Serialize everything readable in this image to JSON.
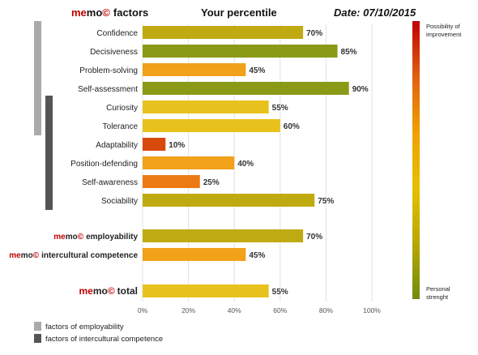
{
  "header": {
    "brand_me": "me",
    "brand_mo": "mo",
    "brand_c": "©",
    "factors_word": "factors",
    "percentile_title": "Your percentile",
    "date_text": "Date: 07/10/2015"
  },
  "chart_data": {
    "type": "bar",
    "orientation": "horizontal",
    "xlim": [
      0,
      100
    ],
    "x_ticks": [
      "0%",
      "20%",
      "40%",
      "60%",
      "80%",
      "100%"
    ],
    "grid": true,
    "factors": [
      {
        "label": "Confidence",
        "value": 70,
        "value_label": "70%"
      },
      {
        "label": "Decisiveness",
        "value": 85,
        "value_label": "85%"
      },
      {
        "label": "Problem-solving",
        "value": 45,
        "value_label": "45%"
      },
      {
        "label": "Self-assessment",
        "value": 90,
        "value_label": "90%"
      },
      {
        "label": "Curiosity",
        "value": 55,
        "value_label": "55%"
      },
      {
        "label": "Tolerance",
        "value": 60,
        "value_label": "60%"
      },
      {
        "label": "Adaptability",
        "value": 10,
        "value_label": "10%"
      },
      {
        "label": "Position-defending",
        "value": 40,
        "value_label": "40%"
      },
      {
        "label": "Self-awareness",
        "value": 25,
        "value_label": "25%"
      },
      {
        "label": "Sociability",
        "value": 75,
        "value_label": "75%"
      }
    ],
    "summaries": [
      {
        "label_rest": "employability",
        "value": 70,
        "value_label": "70%"
      },
      {
        "label_rest": "intercultural competence",
        "value": 45,
        "value_label": "45%"
      }
    ],
    "total": {
      "label_rest": "total",
      "value": 55,
      "value_label": "55%"
    },
    "group_brackets": [
      {
        "name": "factors of employability",
        "color": "#aaaaaa",
        "from": "Confidence",
        "to": "Tolerance"
      },
      {
        "name": "factors of intercultural competence",
        "color": "#555555",
        "from": "Curiosity",
        "to": "Sociability"
      }
    ],
    "color_scale": {
      "top_label": [
        "Possibility of",
        "improvement"
      ],
      "bottom_label": [
        "Personal",
        "strenght"
      ],
      "colors": [
        "#c00000",
        "#e06010",
        "#f0a000",
        "#e6c000",
        "#b8a800",
        "#708c10"
      ]
    }
  }
}
